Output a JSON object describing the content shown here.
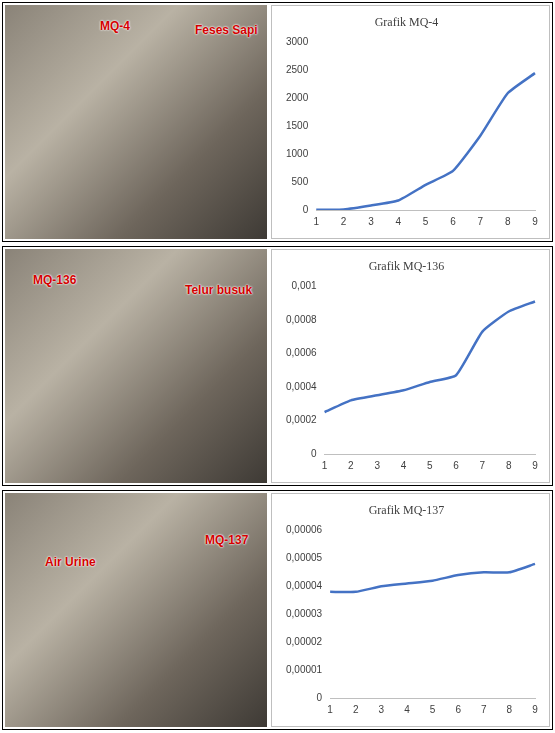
{
  "chart_data": [
    {
      "type": "line",
      "title": "Grafik MQ-4",
      "categories": [
        "1",
        "2",
        "3",
        "4",
        "5",
        "6",
        "7",
        "8",
        "9"
      ],
      "values": [
        5,
        10,
        80,
        170,
        450,
        700,
        1330,
        2090,
        2450
      ],
      "color": "#4472c4",
      "ylim": [
        0,
        3000
      ],
      "yticks": [
        0,
        500,
        1000,
        1500,
        2000,
        2500,
        3000
      ],
      "grid": false
    },
    {
      "type": "line",
      "title": "Grafik MQ-136",
      "categories": [
        "1",
        "2",
        "3",
        "4",
        "5",
        "6",
        "7",
        "8",
        "9"
      ],
      "values": [
        0.00025,
        0.00032,
        0.00035,
        0.00038,
        0.00043,
        0.00047,
        0.00073,
        0.00085,
        0.00091
      ],
      "color": "#4472c4",
      "ylim": [
        0,
        0.001
      ],
      "yticks": [
        0,
        {
          "value": 0.0002,
          "label": "0,0002"
        },
        {
          "value": 0.0004,
          "label": "0,0004"
        },
        {
          "value": 0.0006,
          "label": "0,0006"
        },
        {
          "value": 0.0008,
          "label": "0,0008"
        },
        {
          "value": 0.001,
          "label": "0,001"
        }
      ],
      "grid": false
    },
    {
      "type": "line",
      "title": "Grafik MQ-137",
      "categories": [
        "1",
        "2",
        "3",
        "4",
        "5",
        "6",
        "7",
        "8",
        "9"
      ],
      "values": [
        3.8e-05,
        3.8e-05,
        4e-05,
        4.1e-05,
        4.2e-05,
        4.4e-05,
        4.5e-05,
        4.5e-05,
        4.8e-05
      ],
      "color": "#4472c4",
      "ylim": [
        0,
        6e-05
      ],
      "yticks": [
        0,
        {
          "value": 1e-05,
          "label": "0,00001"
        },
        {
          "value": 2e-05,
          "label": "0,00002"
        },
        {
          "value": 3e-05,
          "label": "0,00003"
        },
        {
          "value": 4e-05,
          "label": "0,00004"
        },
        {
          "value": 5e-05,
          "label": "0,00005"
        },
        {
          "value": 6e-05,
          "label": "0,00006"
        }
      ],
      "grid": false
    }
  ],
  "photos": [
    {
      "labels": [
        "MQ-4",
        "Feses Sapi"
      ]
    },
    {
      "labels": [
        "MQ-136",
        "Telur busuk"
      ]
    },
    {
      "labels": [
        "Air Urine",
        "MQ-137"
      ]
    }
  ]
}
